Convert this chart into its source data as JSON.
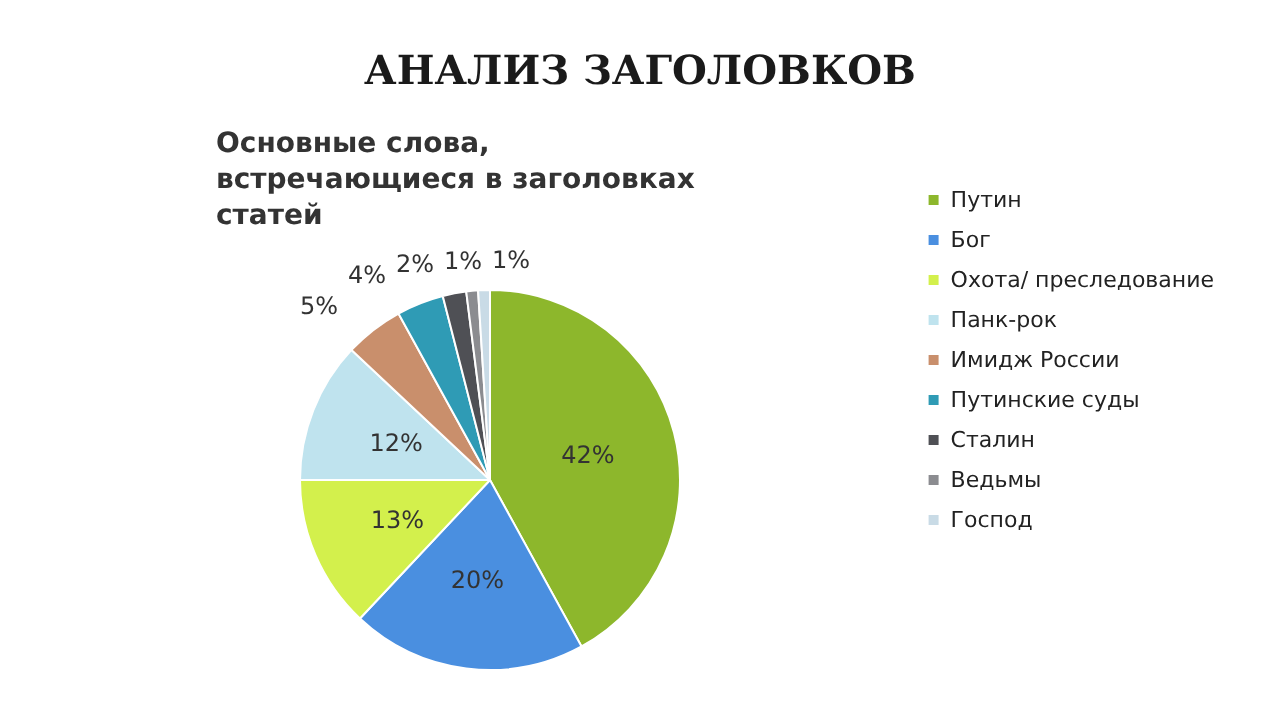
{
  "chart_data": {
    "type": "pie",
    "title": "АНАЛИЗ ЗАГОЛОВКОВ",
    "subtitle": "Основные слова, встречающиеся в заголовках статей",
    "categories": [
      "Путин",
      "Бог",
      "Охота/ преследование",
      "Панк-рок",
      "Имидж России",
      "Путинские суды",
      "Сталин",
      "Ведьмы",
      "Господ"
    ],
    "values": [
      42,
      20,
      13,
      12,
      5,
      4,
      2,
      1,
      1
    ],
    "colors": [
      "#8db72c",
      "#4a8fe0",
      "#d3f04c",
      "#bfe3ee",
      "#c98f6c",
      "#2f9bb5",
      "#4f5055",
      "#8b8c90",
      "#c9dbe6"
    ],
    "value_labels": [
      "42%",
      "20%",
      "13%",
      "12%",
      "5%",
      "4%",
      "2%",
      "1%",
      "1%"
    ],
    "legend": "right"
  }
}
